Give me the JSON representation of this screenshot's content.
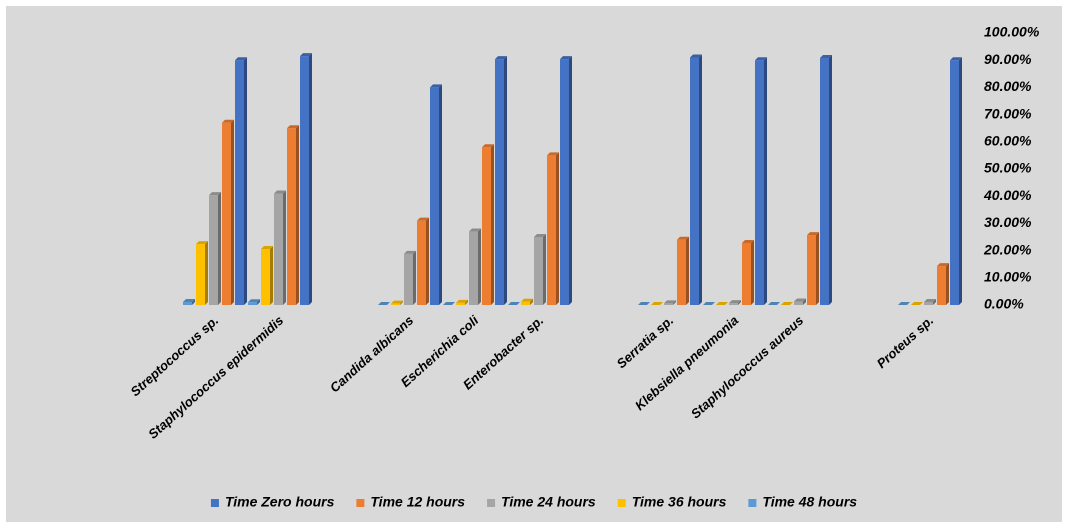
{
  "chart_data": {
    "type": "bar",
    "categories": [
      "Streptococcus sp.",
      "Staphylococcus epidermidis",
      null,
      "Candida albicans",
      "Escherichia coli",
      "Enterobacter sp.",
      null,
      "Serratia sp.",
      "Klebsiella pneumonia",
      "Staphylococcus aureus",
      null,
      "Proteus sp."
    ],
    "series": [
      {
        "name": "Time Zero hours",
        "color": "#4472c4",
        "values": [
          90,
          91.5,
          null,
          80,
          90.4,
          90.4,
          null,
          91,
          90,
          90.8,
          null,
          90
        ]
      },
      {
        "name": "Time 12 hours",
        "color": "#ed7d31",
        "values": [
          67,
          65,
          null,
          31,
          58,
          55,
          null,
          24,
          22.8,
          25.7,
          null,
          14.3
        ]
      },
      {
        "name": "Time 24 hours",
        "color": "#a5a5a5",
        "values": [
          40.4,
          41,
          null,
          18.8,
          27,
          25,
          null,
          0.6,
          0.7,
          1.3,
          null,
          1.1
        ]
      },
      {
        "name": "Time 36 hours",
        "color": "#ffc000",
        "values": [
          22.4,
          20.6,
          null,
          0.5,
          0.8,
          1.2,
          null,
          0,
          0,
          0,
          null,
          0
        ]
      },
      {
        "name": "Time 48 hours",
        "color": "#5b9bd5",
        "values": [
          1.1,
          1,
          null,
          0,
          0,
          0,
          null,
          0,
          0,
          0,
          null,
          0
        ]
      }
    ],
    "ylim": [
      0,
      100
    ],
    "yticks": [
      {
        "value": 0,
        "label": "0.00%"
      },
      {
        "value": 10,
        "label": "10.00%"
      },
      {
        "value": 20,
        "label": "20.00%"
      },
      {
        "value": 30,
        "label": "30.00%"
      },
      {
        "value": 40,
        "label": "40.00%"
      },
      {
        "value": 50,
        "label": "50.00%"
      },
      {
        "value": 60,
        "label": "60.00%"
      },
      {
        "value": 70,
        "label": "70.00%"
      },
      {
        "value": 80,
        "label": "80.00%"
      },
      {
        "value": 90,
        "label": "90.00%"
      },
      {
        "value": 100,
        "label": "100.00%"
      }
    ],
    "legend": "bottom"
  }
}
